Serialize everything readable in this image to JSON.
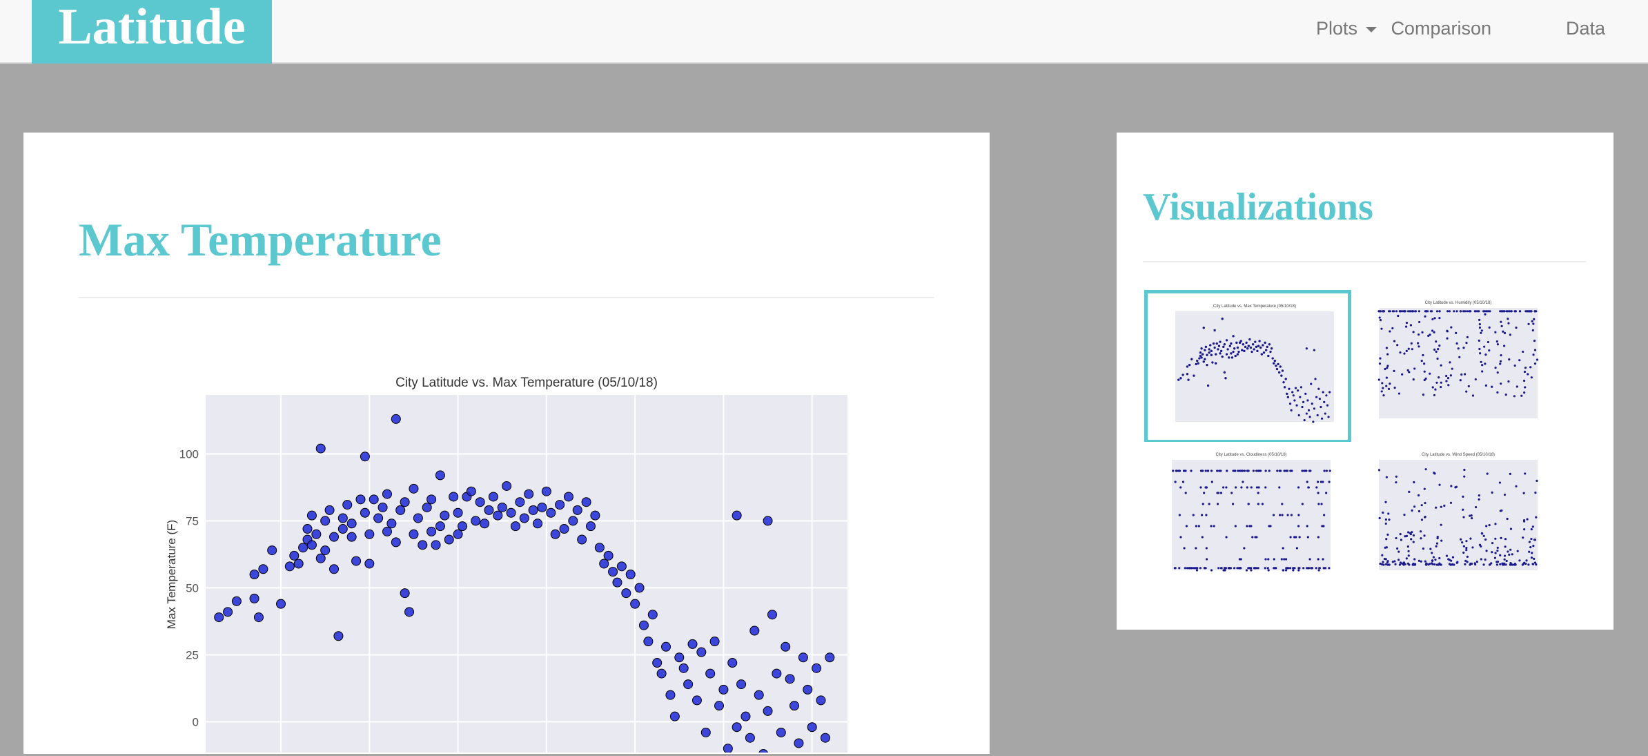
{
  "brand": "Latitude",
  "nav": {
    "plots": "Plots",
    "comparison": "Comparison",
    "data": "Data"
  },
  "main": {
    "title": "Max Temperature"
  },
  "side": {
    "title": "Visualizations",
    "thumbnails": [
      {
        "title": "City Latitude vs. Max Temperature (05/10/18)",
        "selected": true
      },
      {
        "title": "City Latitude vs. Humidity (05/10/18)",
        "selected": false
      },
      {
        "title": "City Latitude vs. Cloudiness (05/10/18)",
        "selected": false
      },
      {
        "title": "City Latitude vs. Wind Speed (05/10/18)",
        "selected": false
      }
    ]
  },
  "colors": {
    "accent": "#5bc7cf",
    "page_bg": "#a6a6a6",
    "plot_bg": "#e9e9f2",
    "marker": "#1f29d6"
  },
  "chart_data": {
    "type": "scatter",
    "title": "City Latitude vs. Max Temperature (05/10/18)",
    "xlabel": "",
    "ylabel": "Max Temperature (F)",
    "ylim": [
      -12,
      122
    ],
    "xlim": [
      -57,
      88
    ],
    "yticks": [
      0,
      25,
      50,
      75,
      100
    ],
    "grid": true,
    "series": [
      {
        "values": [
          [
            -54,
            39
          ],
          [
            -52,
            41
          ],
          [
            -50,
            45
          ],
          [
            -46,
            55
          ],
          [
            -46,
            46
          ],
          [
            -45,
            39
          ],
          [
            -44,
            57
          ],
          [
            -42,
            64
          ],
          [
            -40,
            44
          ],
          [
            -38,
            58
          ],
          [
            -37,
            62
          ],
          [
            -36,
            59
          ],
          [
            -35,
            65
          ],
          [
            -34,
            72
          ],
          [
            -34,
            68
          ],
          [
            -33,
            77
          ],
          [
            -33,
            66
          ],
          [
            -32,
            70
          ],
          [
            -31,
            102
          ],
          [
            -31,
            61
          ],
          [
            -30,
            75
          ],
          [
            -30,
            64
          ],
          [
            -29,
            79
          ],
          [
            -28,
            57
          ],
          [
            -28,
            69
          ],
          [
            -27,
            32
          ],
          [
            -26,
            72
          ],
          [
            -26,
            76
          ],
          [
            -25,
            81
          ],
          [
            -24,
            69
          ],
          [
            -24,
            74
          ],
          [
            -23,
            60
          ],
          [
            -22,
            83
          ],
          [
            -21,
            78
          ],
          [
            -21,
            99
          ],
          [
            -20,
            70
          ],
          [
            -20,
            59
          ],
          [
            -19,
            83
          ],
          [
            -18,
            76
          ],
          [
            -17,
            80
          ],
          [
            -16,
            71
          ],
          [
            -16,
            85
          ],
          [
            -15,
            74
          ],
          [
            -14,
            113
          ],
          [
            -14,
            67
          ],
          [
            -13,
            79
          ],
          [
            -12,
            82
          ],
          [
            -12,
            48
          ],
          [
            -11,
            41
          ],
          [
            -10,
            87
          ],
          [
            -10,
            70
          ],
          [
            -9,
            76
          ],
          [
            -8,
            66
          ],
          [
            -7,
            80
          ],
          [
            -6,
            83
          ],
          [
            -6,
            71
          ],
          [
            -5,
            66
          ],
          [
            -4,
            73
          ],
          [
            -4,
            92
          ],
          [
            -3,
            77
          ],
          [
            -2,
            68
          ],
          [
            -1,
            84
          ],
          [
            0,
            70
          ],
          [
            0,
            78
          ],
          [
            1,
            73
          ],
          [
            2,
            84
          ],
          [
            3,
            86
          ],
          [
            4,
            75
          ],
          [
            5,
            82
          ],
          [
            6,
            74
          ],
          [
            7,
            79
          ],
          [
            8,
            84
          ],
          [
            9,
            77
          ],
          [
            10,
            80
          ],
          [
            11,
            88
          ],
          [
            12,
            78
          ],
          [
            13,
            73
          ],
          [
            14,
            82
          ],
          [
            15,
            76
          ],
          [
            16,
            85
          ],
          [
            17,
            79
          ],
          [
            18,
            74
          ],
          [
            19,
            80
          ],
          [
            20,
            86
          ],
          [
            21,
            78
          ],
          [
            22,
            70
          ],
          [
            23,
            81
          ],
          [
            24,
            72
          ],
          [
            25,
            84
          ],
          [
            26,
            75
          ],
          [
            27,
            79
          ],
          [
            28,
            68
          ],
          [
            29,
            82
          ],
          [
            30,
            73
          ],
          [
            31,
            77
          ],
          [
            32,
            65
          ],
          [
            33,
            59
          ],
          [
            34,
            62
          ],
          [
            35,
            56
          ],
          [
            36,
            52
          ],
          [
            37,
            58
          ],
          [
            38,
            48
          ],
          [
            39,
            55
          ],
          [
            40,
            44
          ],
          [
            41,
            50
          ],
          [
            42,
            36
          ],
          [
            43,
            30
          ],
          [
            44,
            40
          ],
          [
            45,
            22
          ],
          [
            46,
            18
          ],
          [
            47,
            28
          ],
          [
            48,
            10
          ],
          [
            49,
            2
          ],
          [
            50,
            24
          ],
          [
            51,
            20
          ],
          [
            52,
            14
          ],
          [
            53,
            29
          ],
          [
            54,
            8
          ],
          [
            55,
            26
          ],
          [
            56,
            -4
          ],
          [
            57,
            18
          ],
          [
            58,
            30
          ],
          [
            59,
            6
          ],
          [
            60,
            12
          ],
          [
            61,
            -10
          ],
          [
            62,
            22
          ],
          [
            63,
            -2
          ],
          [
            64,
            14
          ],
          [
            65,
            2
          ],
          [
            66,
            -6
          ],
          [
            67,
            34
          ],
          [
            68,
            10
          ],
          [
            69,
            -12
          ],
          [
            70,
            4
          ],
          [
            71,
            40
          ],
          [
            72,
            18
          ],
          [
            73,
            -4
          ],
          [
            74,
            28
          ],
          [
            75,
            16
          ],
          [
            76,
            6
          ],
          [
            77,
            -8
          ],
          [
            78,
            24
          ],
          [
            79,
            12
          ],
          [
            80,
            -2
          ],
          [
            81,
            20
          ],
          [
            82,
            8
          ],
          [
            83,
            -6
          ],
          [
            84,
            24
          ],
          [
            63,
            77
          ],
          [
            70,
            75
          ]
        ]
      }
    ]
  }
}
